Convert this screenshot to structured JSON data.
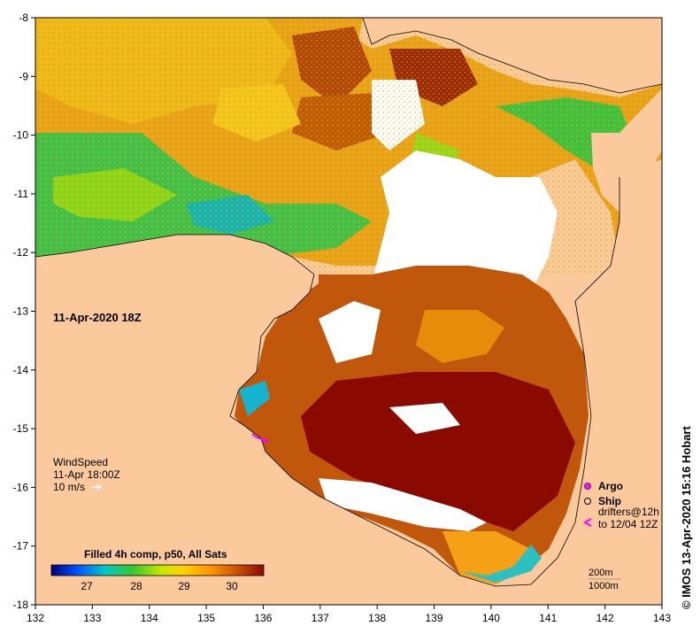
{
  "map": {
    "date_label": "11-Apr-2020 18Z",
    "credit": "© IMOS 13-Apr-2020 15:16 Hobart",
    "wind": {
      "title": "WindSpeed",
      "time": "11-Apr 18:00Z",
      "scale": "10 m/s"
    },
    "colorbar": {
      "title": "Filled 4h comp, p50, All Sats",
      "ticks": [
        "27",
        "28",
        "29",
        "30"
      ],
      "colors": [
        "#00007a",
        "#0050ff",
        "#00c8c8",
        "#32c832",
        "#c8e600",
        "#ffd200",
        "#ff9600",
        "#c85000",
        "#8b0a00"
      ]
    },
    "legend": {
      "argo": "Argo",
      "ship": "Ship",
      "drifters_line1": "drifters@12h",
      "drifters_line2": "to 12/04 12Z",
      "contour1": "200m",
      "contour2": "1000m"
    },
    "axes": {
      "x_ticks": [
        "132",
        "133",
        "134",
        "135",
        "136",
        "137",
        "138",
        "139",
        "140",
        "141",
        "142",
        "143"
      ],
      "y_ticks": [
        "-8",
        "-9",
        "-10",
        "-11",
        "-12",
        "-13",
        "-14",
        "-15",
        "-16",
        "-17",
        "-18"
      ]
    },
    "colors": {
      "land": "#fbc99c",
      "missing": "#ffffff",
      "argo": "#e020e0",
      "drifter": "#ff00ff"
    }
  }
}
